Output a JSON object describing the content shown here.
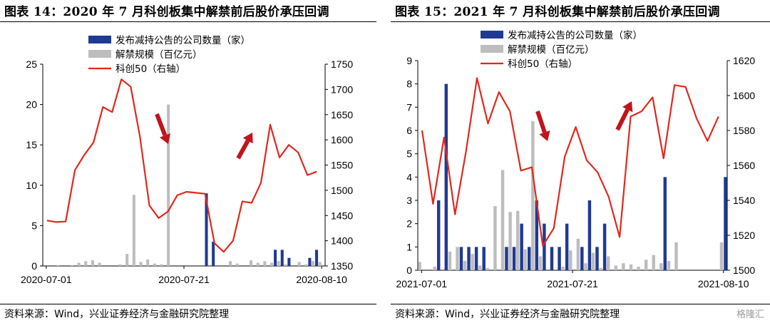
{
  "source_text": "资料来源：Wind，兴业证券经济与金融研究院整理",
  "watermark": "格隆汇",
  "colors": {
    "count": "#1f3a93",
    "scale": "#bdbdbd",
    "index": "#e0281f",
    "arrow": "#c0141c"
  },
  "chart_data": [
    {
      "type": "bar+line",
      "title": "图表 14：2020 年 7 月科创板集中解禁前后股价承压回调",
      "x_tick_labels": [
        "2020-07-01",
        "2020-07-21",
        "2020-08-10"
      ],
      "x_tick_index": [
        0,
        20,
        40
      ],
      "left_axis": {
        "min": 0,
        "max": 25,
        "ticks": [
          0,
          5,
          10,
          15,
          20,
          25
        ]
      },
      "right_axis": {
        "min": 1350,
        "max": 1750,
        "ticks": [
          1350,
          1400,
          1450,
          1500,
          1550,
          1600,
          1650,
          1700,
          1750
        ]
      },
      "legend": [
        "发布减持公告的公司数量（家）",
        "解禁规模（百亿元）",
        "科创50（右轴）"
      ],
      "series": [
        {
          "name": "发布减持公告的公司数量（家）",
          "kind": "bar",
          "axis": "left",
          "values": [
            0,
            0,
            0,
            0,
            0,
            0,
            0,
            0,
            0,
            0,
            0,
            0,
            0,
            0,
            0,
            0,
            0,
            0,
            0,
            0,
            0,
            0,
            0,
            9,
            3,
            0,
            0,
            0,
            0,
            0,
            0,
            0,
            0,
            2,
            2,
            1,
            0,
            0,
            1,
            2,
            0
          ]
        },
        {
          "name": "解禁规模（百亿元）",
          "kind": "bar",
          "axis": "left",
          "values": [
            0,
            0,
            0.1,
            0,
            0.1,
            0.4,
            0.6,
            0.7,
            0.4,
            0,
            0,
            0.2,
            1.5,
            8.8,
            0.5,
            0.8,
            0.3,
            0.2,
            20,
            0,
            0,
            0,
            0,
            0,
            0,
            0,
            0,
            0.6,
            0.3,
            0,
            0.7,
            0.4,
            0.6,
            0.4,
            0.6,
            0.2,
            0,
            0.5,
            0.2,
            0.6,
            0.5
          ]
        },
        {
          "name": "科创50（右轴）",
          "kind": "line",
          "axis": "right",
          "values": [
            1440,
            1437,
            1438,
            1540,
            1570,
            1595,
            1665,
            1655,
            1720,
            1705,
            1605,
            1470,
            1445,
            1458,
            1490,
            1497,
            1495,
            1493,
            1395,
            1378,
            1400,
            1478,
            1475,
            1515,
            1630,
            1565,
            1590,
            1575,
            1530,
            1537
          ]
        }
      ],
      "arrows": [
        {
          "direction": "down"
        },
        {
          "direction": "up"
        }
      ]
    },
    {
      "type": "bar+line",
      "title": "图表 15：2021 年 7 月科创板集中解禁前后股价承压回调",
      "x_tick_labels": [
        "2021-07-01",
        "2021-07-21",
        "2021-08-10"
      ],
      "x_tick_index": [
        0,
        20,
        40
      ],
      "left_axis": {
        "min": 0,
        "max": 9,
        "ticks": [
          0,
          1,
          2,
          3,
          4,
          5,
          6,
          7,
          8,
          9
        ]
      },
      "right_axis": {
        "min": 1500,
        "max": 1620,
        "ticks": [
          1500,
          1520,
          1540,
          1560,
          1580,
          1600,
          1620
        ]
      },
      "legend": [
        "发布减持公告的公司数量（家）",
        "解禁规模（百亿元）",
        "科创50（右轴）"
      ],
      "series": [
        {
          "name": "发布减持公告的公司数量（家）",
          "kind": "bar",
          "axis": "left",
          "values": [
            0,
            0,
            3,
            8,
            0,
            1,
            1,
            1,
            1,
            0,
            0,
            1,
            1,
            2,
            1,
            3,
            2,
            1,
            1,
            2,
            0,
            1,
            3,
            1,
            2,
            0,
            0,
            0,
            0,
            0,
            0,
            0,
            4,
            0,
            0,
            0,
            0,
            0,
            0,
            0,
            4
          ]
        },
        {
          "name": "解禁规模（百亿元）",
          "kind": "bar",
          "axis": "left",
          "values": [
            0.35,
            0,
            0.15,
            0,
            0.8,
            1,
            0.4,
            0.7,
            0.2,
            0.1,
            2.75,
            4.3,
            2.5,
            2.55,
            0.9,
            6.4,
            0.6,
            0,
            0,
            0.15,
            0.85,
            1.35,
            0.3,
            0.75,
            0.1,
            0.6,
            0.2,
            0.3,
            0.25,
            0.15,
            0.45,
            0.65,
            0.3,
            0.4,
            1.2,
            0,
            0,
            0,
            0,
            0,
            1.2
          ]
        },
        {
          "name": "科创50（右轴）",
          "kind": "line",
          "axis": "right",
          "values": [
            1580,
            1538,
            1576,
            1532,
            1568,
            1610,
            1584,
            1602,
            1591,
            1557,
            1559,
            1514,
            1524,
            1565,
            1582,
            1563,
            1556,
            1542,
            1519,
            1588,
            1591,
            1599,
            1564,
            1606,
            1605,
            1587,
            1574,
            1588
          ]
        }
      ],
      "arrows": [
        {
          "direction": "down"
        },
        {
          "direction": "up"
        }
      ]
    }
  ]
}
